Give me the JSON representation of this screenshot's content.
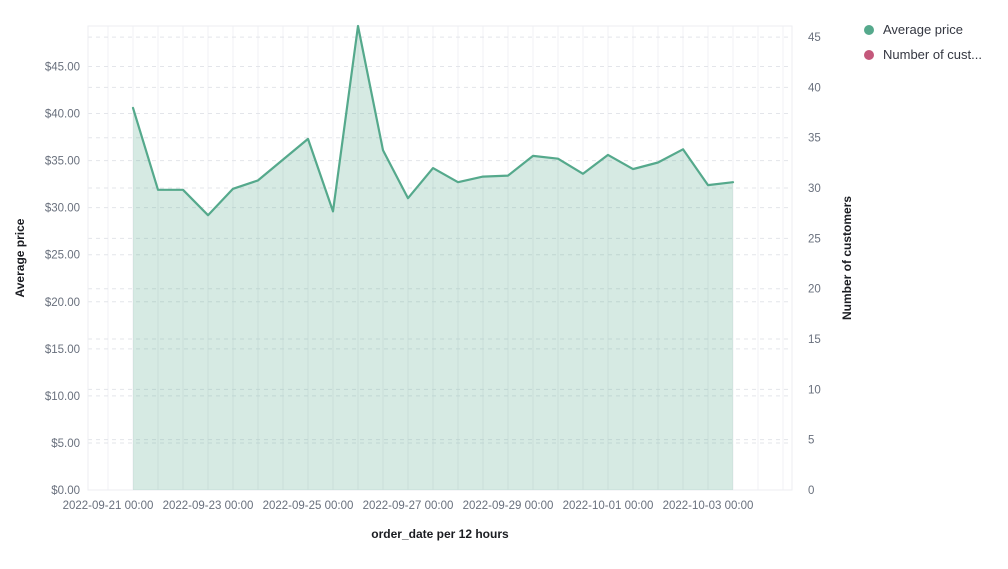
{
  "legend": {
    "items": [
      {
        "label": "Average price",
        "color": "#55a98c"
      },
      {
        "label": "Number of cust...",
        "color": "#c4587b"
      }
    ]
  },
  "axes": {
    "x": {
      "title": "order_date per 12 hours",
      "tick_labels": [
        "2022-09-21 00:00",
        "2022-09-23 00:00",
        "2022-09-25 00:00",
        "2022-09-27 00:00",
        "2022-09-29 00:00",
        "2022-10-01 00:00",
        "2022-10-03 00:00"
      ]
    },
    "y_left": {
      "title": "Average price",
      "ticks": [
        {
          "value": 0,
          "label": "$0.00"
        },
        {
          "value": 5,
          "label": "$5.00"
        },
        {
          "value": 10,
          "label": "$10.00"
        },
        {
          "value": 15,
          "label": "$15.00"
        },
        {
          "value": 20,
          "label": "$20.00"
        },
        {
          "value": 25,
          "label": "$25.00"
        },
        {
          "value": 30,
          "label": "$30.00"
        },
        {
          "value": 35,
          "label": "$35.00"
        },
        {
          "value": 40,
          "label": "$40.00"
        },
        {
          "value": 45,
          "label": "$45.00"
        }
      ]
    },
    "y_right": {
      "title": "Number of customers",
      "ticks": [
        {
          "value": 0,
          "label": "0"
        },
        {
          "value": 5,
          "label": "5"
        },
        {
          "value": 10,
          "label": "10"
        },
        {
          "value": 15,
          "label": "15"
        },
        {
          "value": 20,
          "label": "20"
        },
        {
          "value": 25,
          "label": "25"
        },
        {
          "value": 30,
          "label": "30"
        },
        {
          "value": 35,
          "label": "35"
        },
        {
          "value": 40,
          "label": "40"
        },
        {
          "value": 45,
          "label": "45"
        }
      ]
    }
  },
  "chart_data": {
    "type": "area",
    "title": "",
    "xlabel": "order_date per 12 hours",
    "ylabel": "Average price",
    "ylabel_right": "Number of customers",
    "x_interval": "12 hours",
    "x": [
      "2022-09-21 12:00",
      "2022-09-22 00:00",
      "2022-09-22 12:00",
      "2022-09-23 00:00",
      "2022-09-23 12:00",
      "2022-09-24 00:00",
      "2022-09-24 12:00",
      "2022-09-25 00:00",
      "2022-09-25 12:00",
      "2022-09-26 00:00",
      "2022-09-26 12:00",
      "2022-09-27 00:00",
      "2022-09-27 12:00",
      "2022-09-28 00:00",
      "2022-09-28 12:00",
      "2022-09-29 00:00",
      "2022-09-29 12:00",
      "2022-09-30 00:00",
      "2022-09-30 12:00",
      "2022-10-01 00:00",
      "2022-10-01 12:00",
      "2022-10-02 00:00",
      "2022-10-02 12:00",
      "2022-10-03 00:00",
      "2022-10-03 12:00"
    ],
    "series": [
      {
        "name": "Average price",
        "axis": "left",
        "color": "#55a98c",
        "fill": "rgba(85,169,140,0.24)",
        "values": [
          40.6,
          31.9,
          31.9,
          29.2,
          32.0,
          32.9,
          35.1,
          37.3,
          29.6,
          49.3,
          36.1,
          31.0,
          34.2,
          32.7,
          33.3,
          33.4,
          35.5,
          35.2,
          33.6,
          35.6,
          34.1,
          34.8,
          36.2,
          32.4,
          32.7
        ]
      },
      {
        "name": "Number of customers",
        "axis": "right",
        "color": "#c4587b",
        "fill": "rgba(196,88,123,0.24)",
        "values": []
      }
    ],
    "ylim_left": [
      0,
      49.3
    ],
    "ylim_right": [
      0,
      46.1
    ],
    "grid": true,
    "legend_position": "top-right"
  }
}
